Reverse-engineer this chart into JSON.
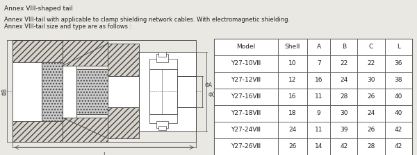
{
  "title1": "Annex VIII-shaped tail",
  "desc1": "Annex VIII-tail with applicable to clamp shielding network cables. With electromagnetic shielding.",
  "desc2": "Annex VIII-tail size and type are as follows :",
  "table_headers": [
    "Model",
    "Shell",
    "A",
    "B",
    "C",
    "L"
  ],
  "table_rows": [
    [
      "Y27-10Ⅷ",
      "10",
      "7",
      "22",
      "22",
      "36"
    ],
    [
      "Y27-12Ⅷ",
      "12",
      "16",
      "24",
      "30",
      "38"
    ],
    [
      "Y27-16Ⅷ",
      "16",
      "11",
      "28",
      "26",
      "40"
    ],
    [
      "Y27-18Ⅷ",
      "18",
      "9",
      "30",
      "24",
      "40"
    ],
    [
      "Y27-24Ⅷ",
      "24",
      "11",
      "39",
      "26",
      "42"
    ],
    [
      "Y27-26Ⅷ",
      "26",
      "14",
      "42",
      "28",
      "42"
    ]
  ],
  "bg_color": "#eae8e3",
  "line_color": "#444444",
  "hatch_color": "#bbbbbb",
  "dot_color": "#cccccc"
}
